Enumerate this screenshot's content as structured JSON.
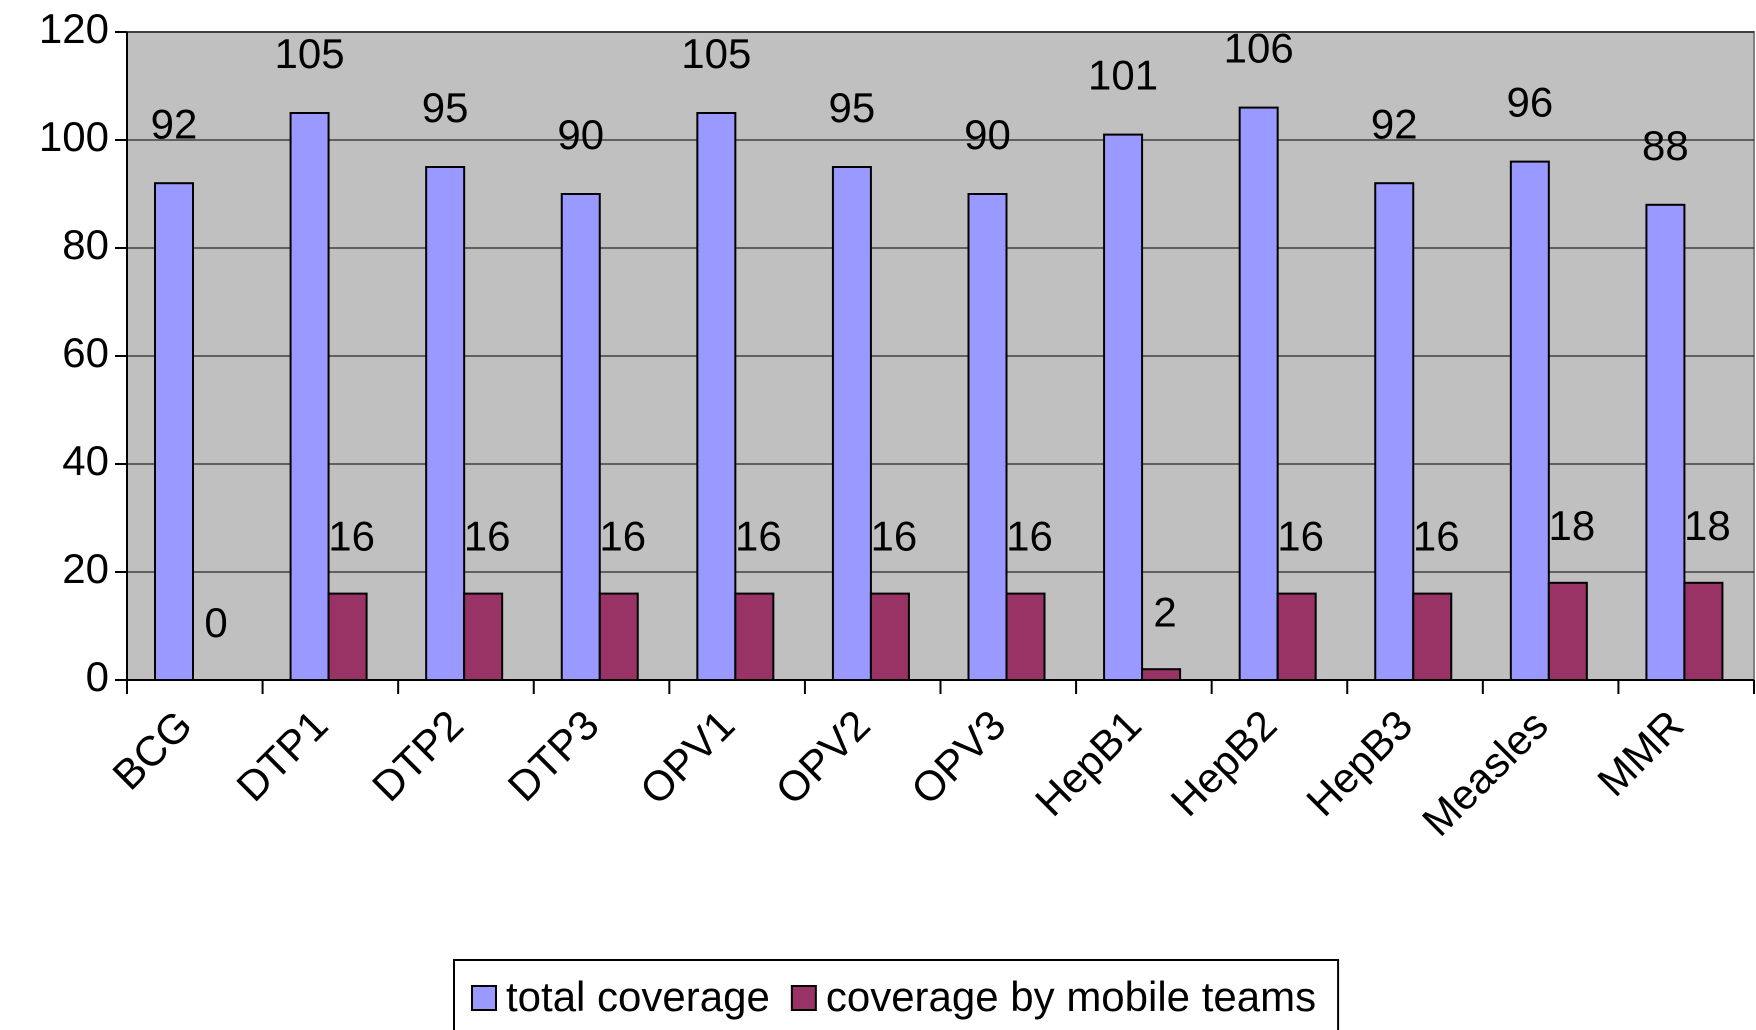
{
  "chart_data": {
    "type": "bar",
    "categories": [
      "BCG",
      "DTP1",
      "DTP2",
      "DTP3",
      "OPV1",
      "OPV2",
      "OPV3",
      "HepB1",
      "HepB2",
      "HepB3",
      "Measles",
      "MMR"
    ],
    "series": [
      {
        "name": "total coverage",
        "color": "#9999ff",
        "values": [
          92,
          105,
          95,
          90,
          105,
          95,
          90,
          101,
          106,
          92,
          96,
          88
        ]
      },
      {
        "name": "coverage by mobile teams",
        "color": "#993366",
        "values": [
          0,
          16,
          16,
          16,
          16,
          16,
          16,
          2,
          16,
          16,
          18,
          18
        ]
      }
    ],
    "ylim": [
      0,
      120
    ],
    "yticks": [
      0,
      20,
      40,
      60,
      80,
      100,
      120
    ],
    "grid": true,
    "legend": "bottom",
    "plot_background": "#c0c0c0"
  }
}
